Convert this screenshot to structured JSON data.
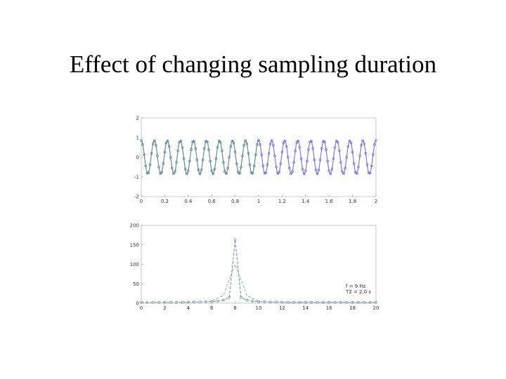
{
  "slide": {
    "title": "Effect of changing sampling duration"
  },
  "chart_data": [
    {
      "type": "line",
      "title": "",
      "xlabel": "",
      "ylabel": "",
      "xlim": [
        0,
        2
      ],
      "ylim": [
        -2,
        2
      ],
      "xticks": [
        "0",
        "0.2",
        "0.4",
        "0.6",
        "0.8",
        "1",
        "1.2",
        "1.4",
        "1.6",
        "1.8",
        "2"
      ],
      "yticks": [
        "-2",
        "-1",
        "0",
        "1",
        "2"
      ],
      "grid": false,
      "signal": {
        "frequency_hz": 9,
        "amplitude": 0.85
      },
      "series": [
        {
          "x_range": [
            0,
            1
          ],
          "sample_step": 0.0125,
          "color": "#3f6f7f"
        },
        {
          "x_range": [
            1,
            2
          ],
          "sample_step": 0.0125,
          "color": "#5a5ac8"
        }
      ]
    },
    {
      "type": "line",
      "title": "",
      "xlabel": "",
      "ylabel": "",
      "xlim": [
        0,
        20
      ],
      "ylim": [
        0,
        200
      ],
      "xticks": [
        "0",
        "2",
        "4",
        "6",
        "8",
        "10",
        "12",
        "14",
        "16",
        "18",
        "20"
      ],
      "yticks": [
        "0",
        "50",
        "100",
        "150",
        "200"
      ],
      "grid": false,
      "legend": {
        "position": "right",
        "lines": [
          "f = 9 Hz",
          "T2 = 2.0 s"
        ]
      },
      "series": [
        {
          "style": "dashed-markers",
          "color": "#6a8fa8",
          "x": [
            0,
            0.5,
            1,
            1.5,
            2,
            2.5,
            3,
            3.5,
            4,
            4.5,
            5,
            5.5,
            6,
            6.5,
            7,
            7.5,
            8,
            8.5,
            9,
            9.5,
            10,
            10.5,
            11,
            11.5,
            12,
            12.5,
            13,
            13.5,
            14,
            14.5,
            15,
            15.5,
            16,
            16.5,
            17,
            17.5,
            18,
            18.5,
            19,
            19.5,
            20
          ],
          "y": [
            2,
            2,
            2,
            2,
            2,
            2,
            2,
            2,
            2.5,
            3,
            3,
            3.5,
            4,
            5,
            8,
            15,
            163,
            15,
            8,
            5,
            4,
            3.5,
            3,
            3,
            2.5,
            2,
            2,
            2,
            2,
            2,
            2,
            2,
            2,
            2,
            2,
            2,
            2,
            2,
            2,
            2,
            2
          ]
        },
        {
          "style": "dashed",
          "color": "#9ab5a8",
          "x": [
            0,
            1,
            2,
            3,
            4,
            5,
            6,
            7,
            8,
            9,
            10,
            11,
            12,
            13,
            14,
            15,
            16,
            17,
            18,
            19,
            20
          ],
          "y": [
            2,
            2,
            2,
            2,
            3,
            3,
            5,
            20,
            100,
            20,
            5,
            3,
            3,
            2,
            2,
            2,
            2,
            2,
            2,
            2,
            2
          ]
        }
      ]
    }
  ]
}
